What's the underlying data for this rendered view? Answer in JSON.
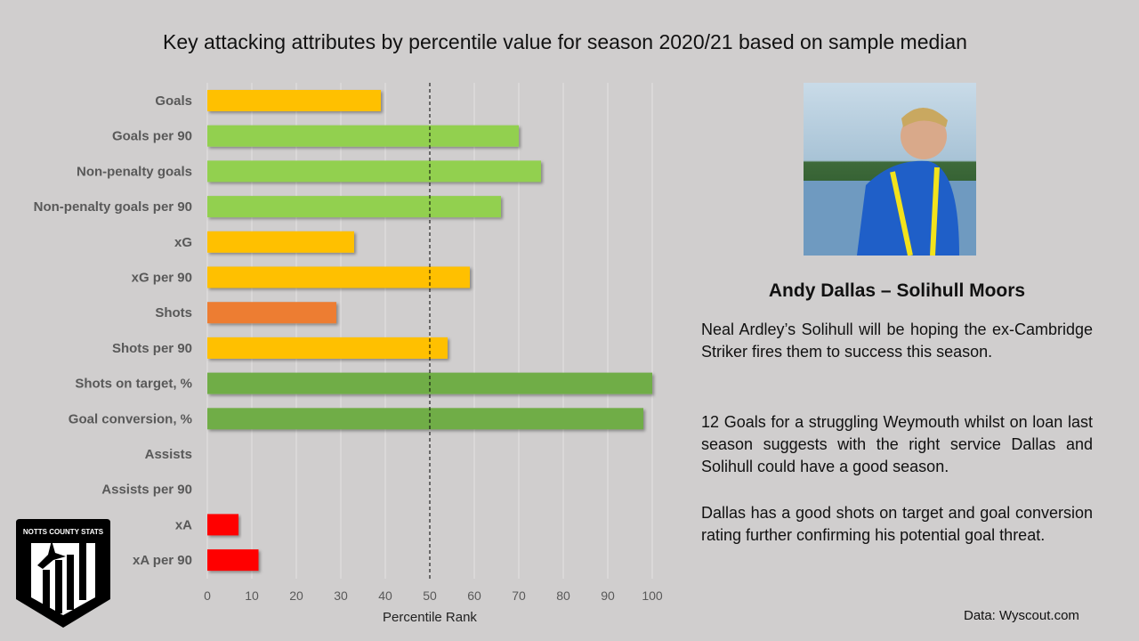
{
  "title": "Key attacking attributes by percentile value for season 2020/21 based on sample median",
  "chart_data": {
    "type": "bar",
    "orientation": "horizontal",
    "categories": [
      "Goals",
      "Goals per 90",
      "Non-penalty goals",
      "Non-penalty goals per 90",
      "xG",
      "xG per 90",
      "Shots",
      "Shots per 90",
      "Shots on target, %",
      "Goal conversion, %",
      "Assists",
      "Assists per 90",
      "xA",
      "xA per 90"
    ],
    "values": [
      39,
      70,
      75,
      66,
      33,
      59,
      29,
      54,
      100,
      98,
      0,
      0,
      7,
      11.5
    ],
    "colors": [
      "#FFC000",
      "#92D050",
      "#92D050",
      "#92D050",
      "#FFC000",
      "#FFC000",
      "#ED7D31",
      "#FFC000",
      "#70AD47",
      "#70AD47",
      "#FFC000",
      "#FFC000",
      "#FF0000",
      "#FF0000"
    ],
    "xlabel": "Percentile Rank",
    "xlim": [
      0,
      100
    ],
    "xticks": [
      "0",
      "10",
      "20",
      "30",
      "40",
      "50",
      "60",
      "70",
      "80",
      "90",
      "100"
    ],
    "median_line": 50,
    "grid": true
  },
  "player": {
    "name": "Andy Dallas – Solihull Moors"
  },
  "paragraphs": [
    "Neal Ardley’s Solihull will be hoping the ex-Cambridge Striker fires them to success this season.",
    "12 Goals for a struggling Weymouth whilst on loan last season suggests with the right service Dallas and Solihull could have a good season.",
    "Dallas has a good shots on target and goal conversion rating further confirming his potential goal threat."
  ],
  "source": "Data: Wyscout.com",
  "logo_text": "NOTTS COUNTY STATS"
}
